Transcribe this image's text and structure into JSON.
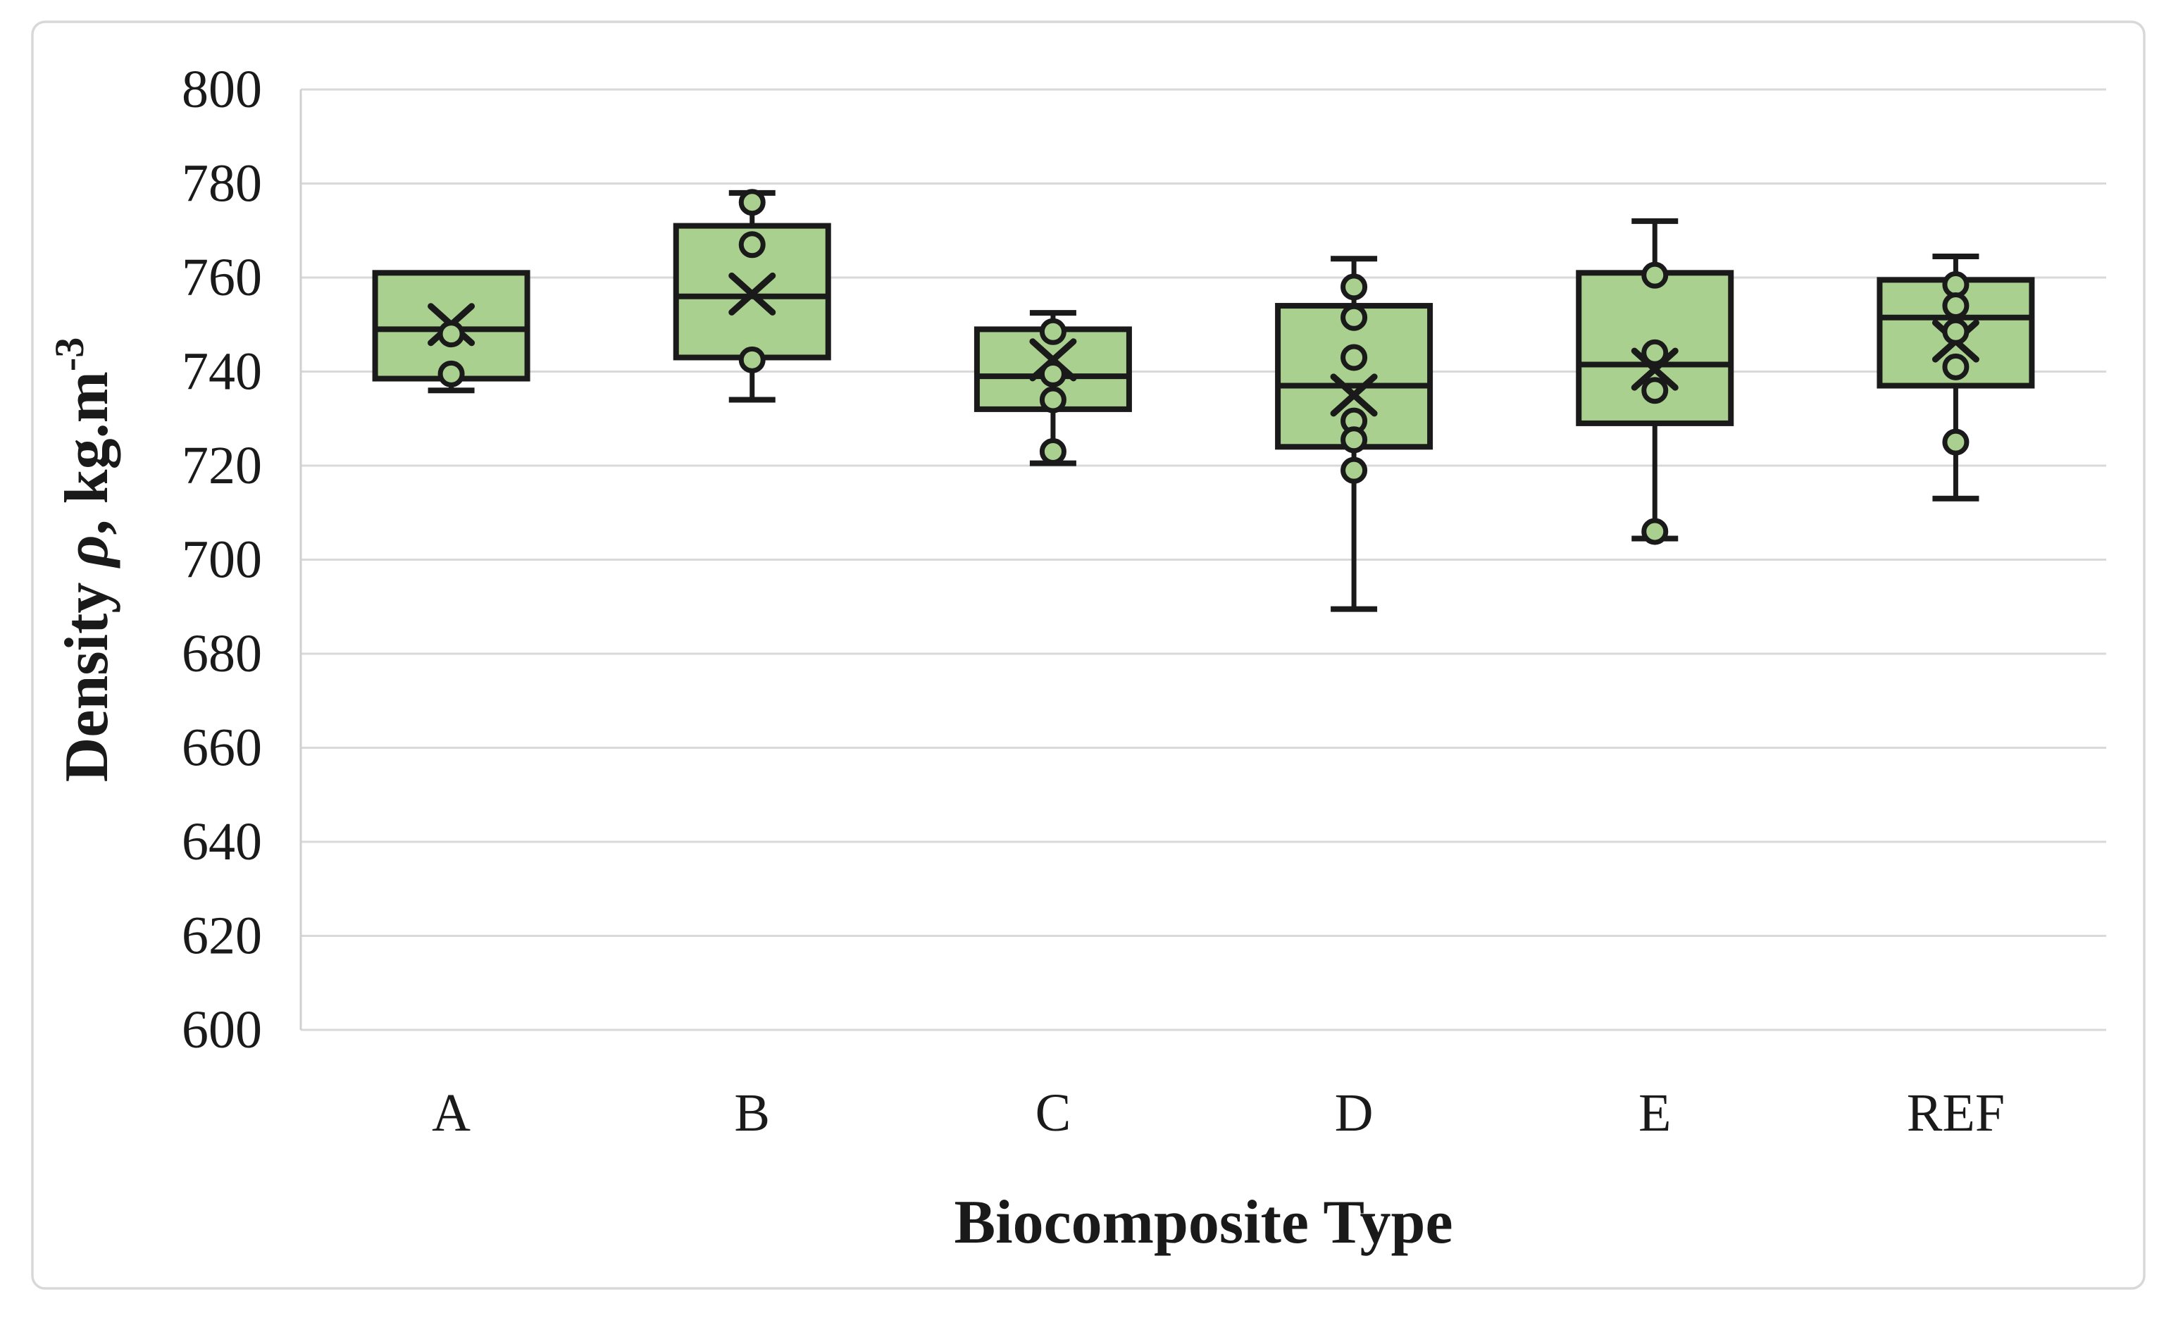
{
  "chart_data": {
    "type": "box",
    "title": "",
    "xlabel": "Biocomposite Type",
    "ylabel": "Density ρ, kg.m⁻³",
    "ylabel_parts": {
      "prefix": "Density ",
      "symbol_italic": "ρ",
      "unit": ", kg.m",
      "exponent": "-3"
    },
    "ylim": [
      600,
      800
    ],
    "ytick_step": 20,
    "yticks": [
      800,
      780,
      760,
      740,
      720,
      700,
      680,
      660,
      640,
      620,
      600
    ],
    "categories": [
      "A",
      "B",
      "C",
      "D",
      "E",
      "REF"
    ],
    "grid": "horizontal",
    "legend": "none",
    "series": [
      {
        "category": "A",
        "whisker_low": 736,
        "q1": 738.5,
        "median": 749,
        "q3": 761,
        "whisker_high": 761,
        "mean": 750,
        "points": [
          748,
          739.5
        ]
      },
      {
        "category": "B",
        "whisker_low": 734,
        "q1": 743,
        "median": 756,
        "q3": 771,
        "whisker_high": 778,
        "mean": 756.5,
        "points": [
          776,
          767,
          742.5
        ]
      },
      {
        "category": "C",
        "whisker_low": 720.5,
        "q1": 732,
        "median": 739,
        "q3": 749,
        "whisker_high": 752.5,
        "mean": 742.5,
        "points": [
          748.5,
          739.5,
          734,
          723
        ]
      },
      {
        "category": "D",
        "whisker_low": 689.5,
        "q1": 724,
        "median": 737,
        "q3": 754,
        "whisker_high": 764,
        "mean": 735,
        "points": [
          758,
          751.5,
          743,
          729.5,
          725.5,
          719
        ]
      },
      {
        "category": "E",
        "whisker_low": 704.5,
        "q1": 729,
        "median": 741.5,
        "q3": 761,
        "whisker_high": 772,
        "mean": 740.5,
        "points": [
          760.5,
          744,
          736,
          706
        ]
      },
      {
        "category": "REF",
        "whisker_low": 713,
        "q1": 737,
        "median": 751.5,
        "q3": 759.5,
        "whisker_high": 764.5,
        "mean": 746.5,
        "points": [
          758.5,
          754,
          748.5,
          741,
          725
        ]
      }
    ],
    "style": {
      "box_fill": "#a9d08e",
      "marker_fill": "#a9d08e",
      "stroke": "#1a1a1a",
      "gridline": "#d9d9d9",
      "axis_line": "#d0d0d0",
      "figure_border": "#d8d8d8",
      "background": "#ffffff"
    }
  }
}
